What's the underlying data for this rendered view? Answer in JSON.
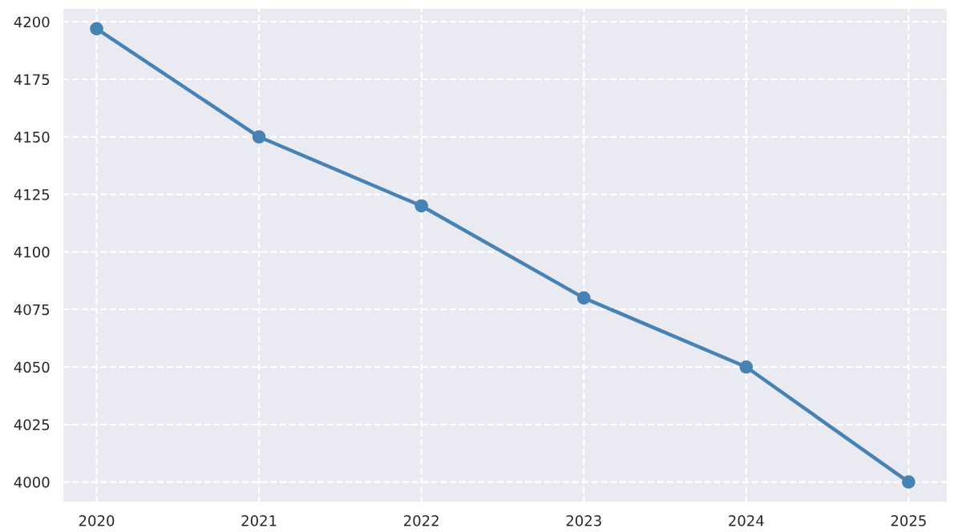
{
  "chart_data": {
    "type": "line",
    "x": [
      2020,
      2021,
      2022,
      2023,
      2024,
      2025
    ],
    "series": [
      {
        "color": "#4682b4",
        "values": [
          4197,
          4150,
          4120,
          4080,
          4050,
          4000
        ]
      }
    ],
    "xlim": [
      2019.79,
      2025.24
    ],
    "xticks": [
      2020,
      2021,
      2022,
      2023,
      2024,
      2025
    ],
    "ylim": [
      3991,
      4206
    ],
    "yticks": [
      4000,
      4025,
      4050,
      4075,
      4100,
      4125,
      4150,
      4175,
      4200
    ],
    "grid": true,
    "marker": "circle",
    "line_style": "solid",
    "legend": false
  }
}
